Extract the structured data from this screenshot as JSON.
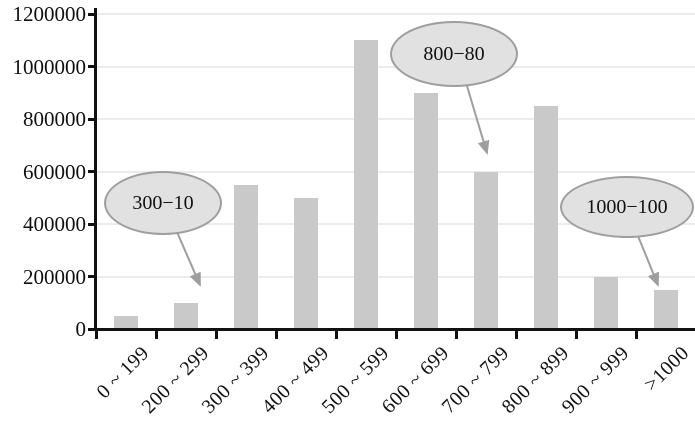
{
  "chart_data": {
    "type": "bar",
    "title": "",
    "xlabel": "",
    "ylabel": "",
    "categories": [
      "0 ~ 199",
      "200 ~ 299",
      "300 ~ 399",
      "400 ~ 499",
      "500 ~ 599",
      "600 ~ 699",
      "700 ~ 799",
      "800 ~ 899",
      "900 ~ 999",
      ">1000"
    ],
    "values": [
      50000,
      100000,
      550000,
      500000,
      1100000,
      900000,
      600000,
      850000,
      200000,
      150000
    ],
    "ylim": [
      0,
      1200000
    ],
    "yticks": [
      0,
      200000,
      400000,
      600000,
      800000,
      1000000,
      1200000
    ],
    "ytick_labels": [
      "0",
      "200000",
      "400000",
      "600000",
      "800000",
      "1000000",
      "1200000"
    ],
    "grid": "horizontal",
    "legend": "none",
    "annotations": [
      {
        "label": "300−10",
        "target_category": "200 ~ 299"
      },
      {
        "label": "800−80",
        "target_category": "700 ~ 799"
      },
      {
        "label": "1000−100",
        "target_category": ">1000"
      }
    ]
  },
  "colors": {
    "background": "#ffffff",
    "bar": "#c9c9c9",
    "gridline": "#ececec",
    "axis": "#111111",
    "text": "#111111",
    "callout_fill": "#e1e1e1",
    "callout_border": "#9e9e9e",
    "arrow": "#9e9e9e"
  }
}
